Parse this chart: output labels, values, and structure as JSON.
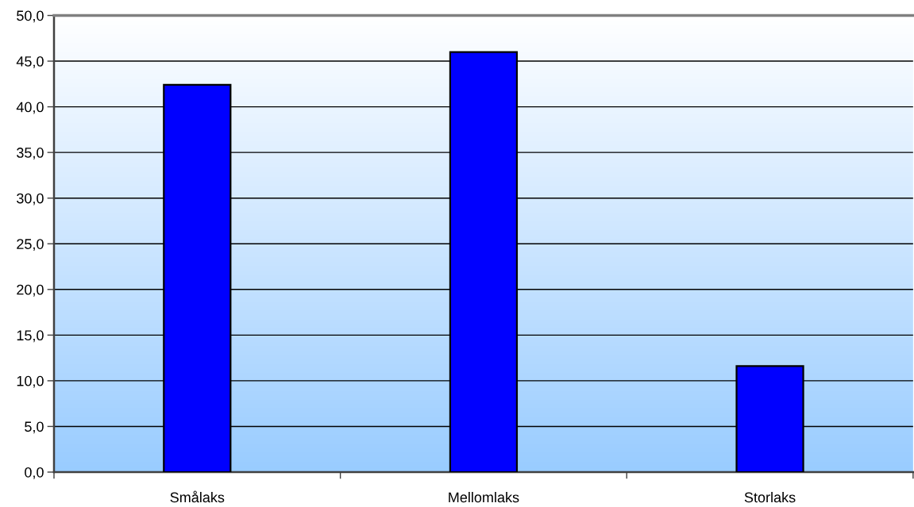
{
  "chart_data": {
    "type": "bar",
    "categories": [
      "Smålaks",
      "Mellomlaks",
      "Storlaks"
    ],
    "values": [
      42.4,
      46.0,
      11.6
    ],
    "color": "#0000ff",
    "ylim": [
      0,
      50
    ],
    "yticks": [
      {
        "value": 0,
        "label": "0,0"
      },
      {
        "value": 5,
        "label": "5,0"
      },
      {
        "value": 10,
        "label": "10,0"
      },
      {
        "value": 15,
        "label": "15,0"
      },
      {
        "value": 20,
        "label": "20,0"
      },
      {
        "value": 25,
        "label": "25,0"
      },
      {
        "value": 30,
        "label": "30,0"
      },
      {
        "value": 35,
        "label": "35,0"
      },
      {
        "value": 40,
        "label": "40,0"
      },
      {
        "value": 45,
        "label": "45,0"
      },
      {
        "value": 50,
        "label": "50,0"
      }
    ],
    "grid": "y"
  }
}
